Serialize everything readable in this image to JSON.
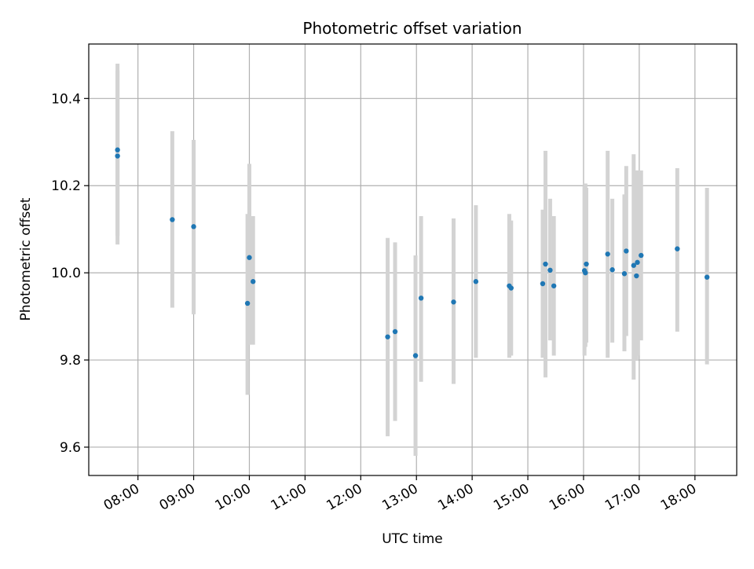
{
  "chart_data": {
    "type": "scatter",
    "title": "Photometric offset variation",
    "xlabel": "UTC time",
    "ylabel": "Photometric offset",
    "xlim": [
      "07:07",
      "18:45"
    ],
    "ylim": [
      9.535,
      10.525
    ],
    "grid": true,
    "xticks": [
      "08:00",
      "09:00",
      "10:00",
      "11:00",
      "12:00",
      "13:00",
      "14:00",
      "15:00",
      "16:00",
      "17:00",
      "18:00"
    ],
    "yticks": [
      "9.6",
      "9.8",
      "10.0",
      "10.2",
      "10.4"
    ],
    "colors": {
      "point": "#1f77b4",
      "errorbar": "#d3d3d3",
      "grid": "#b0b0b0"
    },
    "series": [
      {
        "points": [
          {
            "x": "07:38",
            "y": 10.268,
            "lo": 10.065,
            "hi": 10.465
          },
          {
            "x": "07:38",
            "y": 10.282,
            "lo": 10.085,
            "hi": 10.48
          },
          {
            "x": "08:37",
            "y": 10.122,
            "lo": 9.92,
            "hi": 10.325
          },
          {
            "x": "09:00",
            "y": 10.106,
            "lo": 9.905,
            "hi": 10.305
          },
          {
            "x": "09:58",
            "y": 9.93,
            "lo": 9.72,
            "hi": 10.135
          },
          {
            "x": "10:00",
            "y": 10.035,
            "lo": 9.835,
            "hi": 10.25
          },
          {
            "x": "10:04",
            "y": 9.98,
            "lo": 9.835,
            "hi": 10.13
          },
          {
            "x": "12:29",
            "y": 9.853,
            "lo": 9.625,
            "hi": 10.08
          },
          {
            "x": "12:37",
            "y": 9.865,
            "lo": 9.66,
            "hi": 10.07
          },
          {
            "x": "12:59",
            "y": 9.81,
            "lo": 9.58,
            "hi": 10.04
          },
          {
            "x": "13:05",
            "y": 9.942,
            "lo": 9.75,
            "hi": 10.13
          },
          {
            "x": "13:40",
            "y": 9.933,
            "lo": 9.745,
            "hi": 10.125
          },
          {
            "x": "14:04",
            "y": 9.98,
            "lo": 9.805,
            "hi": 10.155
          },
          {
            "x": "14:40",
            "y": 9.97,
            "lo": 9.805,
            "hi": 10.135
          },
          {
            "x": "14:42",
            "y": 9.965,
            "lo": 9.81,
            "hi": 10.12
          },
          {
            "x": "15:16",
            "y": 9.975,
            "lo": 9.805,
            "hi": 10.145
          },
          {
            "x": "15:19",
            "y": 10.02,
            "lo": 9.76,
            "hi": 10.28
          },
          {
            "x": "15:24",
            "y": 10.006,
            "lo": 9.845,
            "hi": 10.17
          },
          {
            "x": "15:28",
            "y": 9.97,
            "lo": 9.81,
            "hi": 10.13
          },
          {
            "x": "16:01",
            "y": 10.005,
            "lo": 9.81,
            "hi": 10.2
          },
          {
            "x": "16:02",
            "y": 10.0,
            "lo": 9.83,
            "hi": 10.205
          },
          {
            "x": "16:03",
            "y": 10.02,
            "lo": 9.84,
            "hi": 10.195
          },
          {
            "x": "16:26",
            "y": 10.043,
            "lo": 9.805,
            "hi": 10.28
          },
          {
            "x": "16:31",
            "y": 10.007,
            "lo": 9.84,
            "hi": 10.17
          },
          {
            "x": "16:44",
            "y": 9.998,
            "lo": 9.82,
            "hi": 10.18
          },
          {
            "x": "16:46",
            "y": 10.05,
            "lo": 9.855,
            "hi": 10.245
          },
          {
            "x": "16:54",
            "y": 10.017,
            "lo": 9.755,
            "hi": 10.272
          },
          {
            "x": "16:57",
            "y": 9.993,
            "lo": 9.8,
            "hi": 10.235
          },
          {
            "x": "16:58",
            "y": 10.024,
            "lo": 9.81,
            "hi": 10.235
          },
          {
            "x": "17:02",
            "y": 10.04,
            "lo": 9.845,
            "hi": 10.235
          },
          {
            "x": "17:41",
            "y": 10.055,
            "lo": 9.865,
            "hi": 10.24
          },
          {
            "x": "18:13",
            "y": 9.99,
            "lo": 9.79,
            "hi": 10.195
          }
        ]
      }
    ]
  }
}
